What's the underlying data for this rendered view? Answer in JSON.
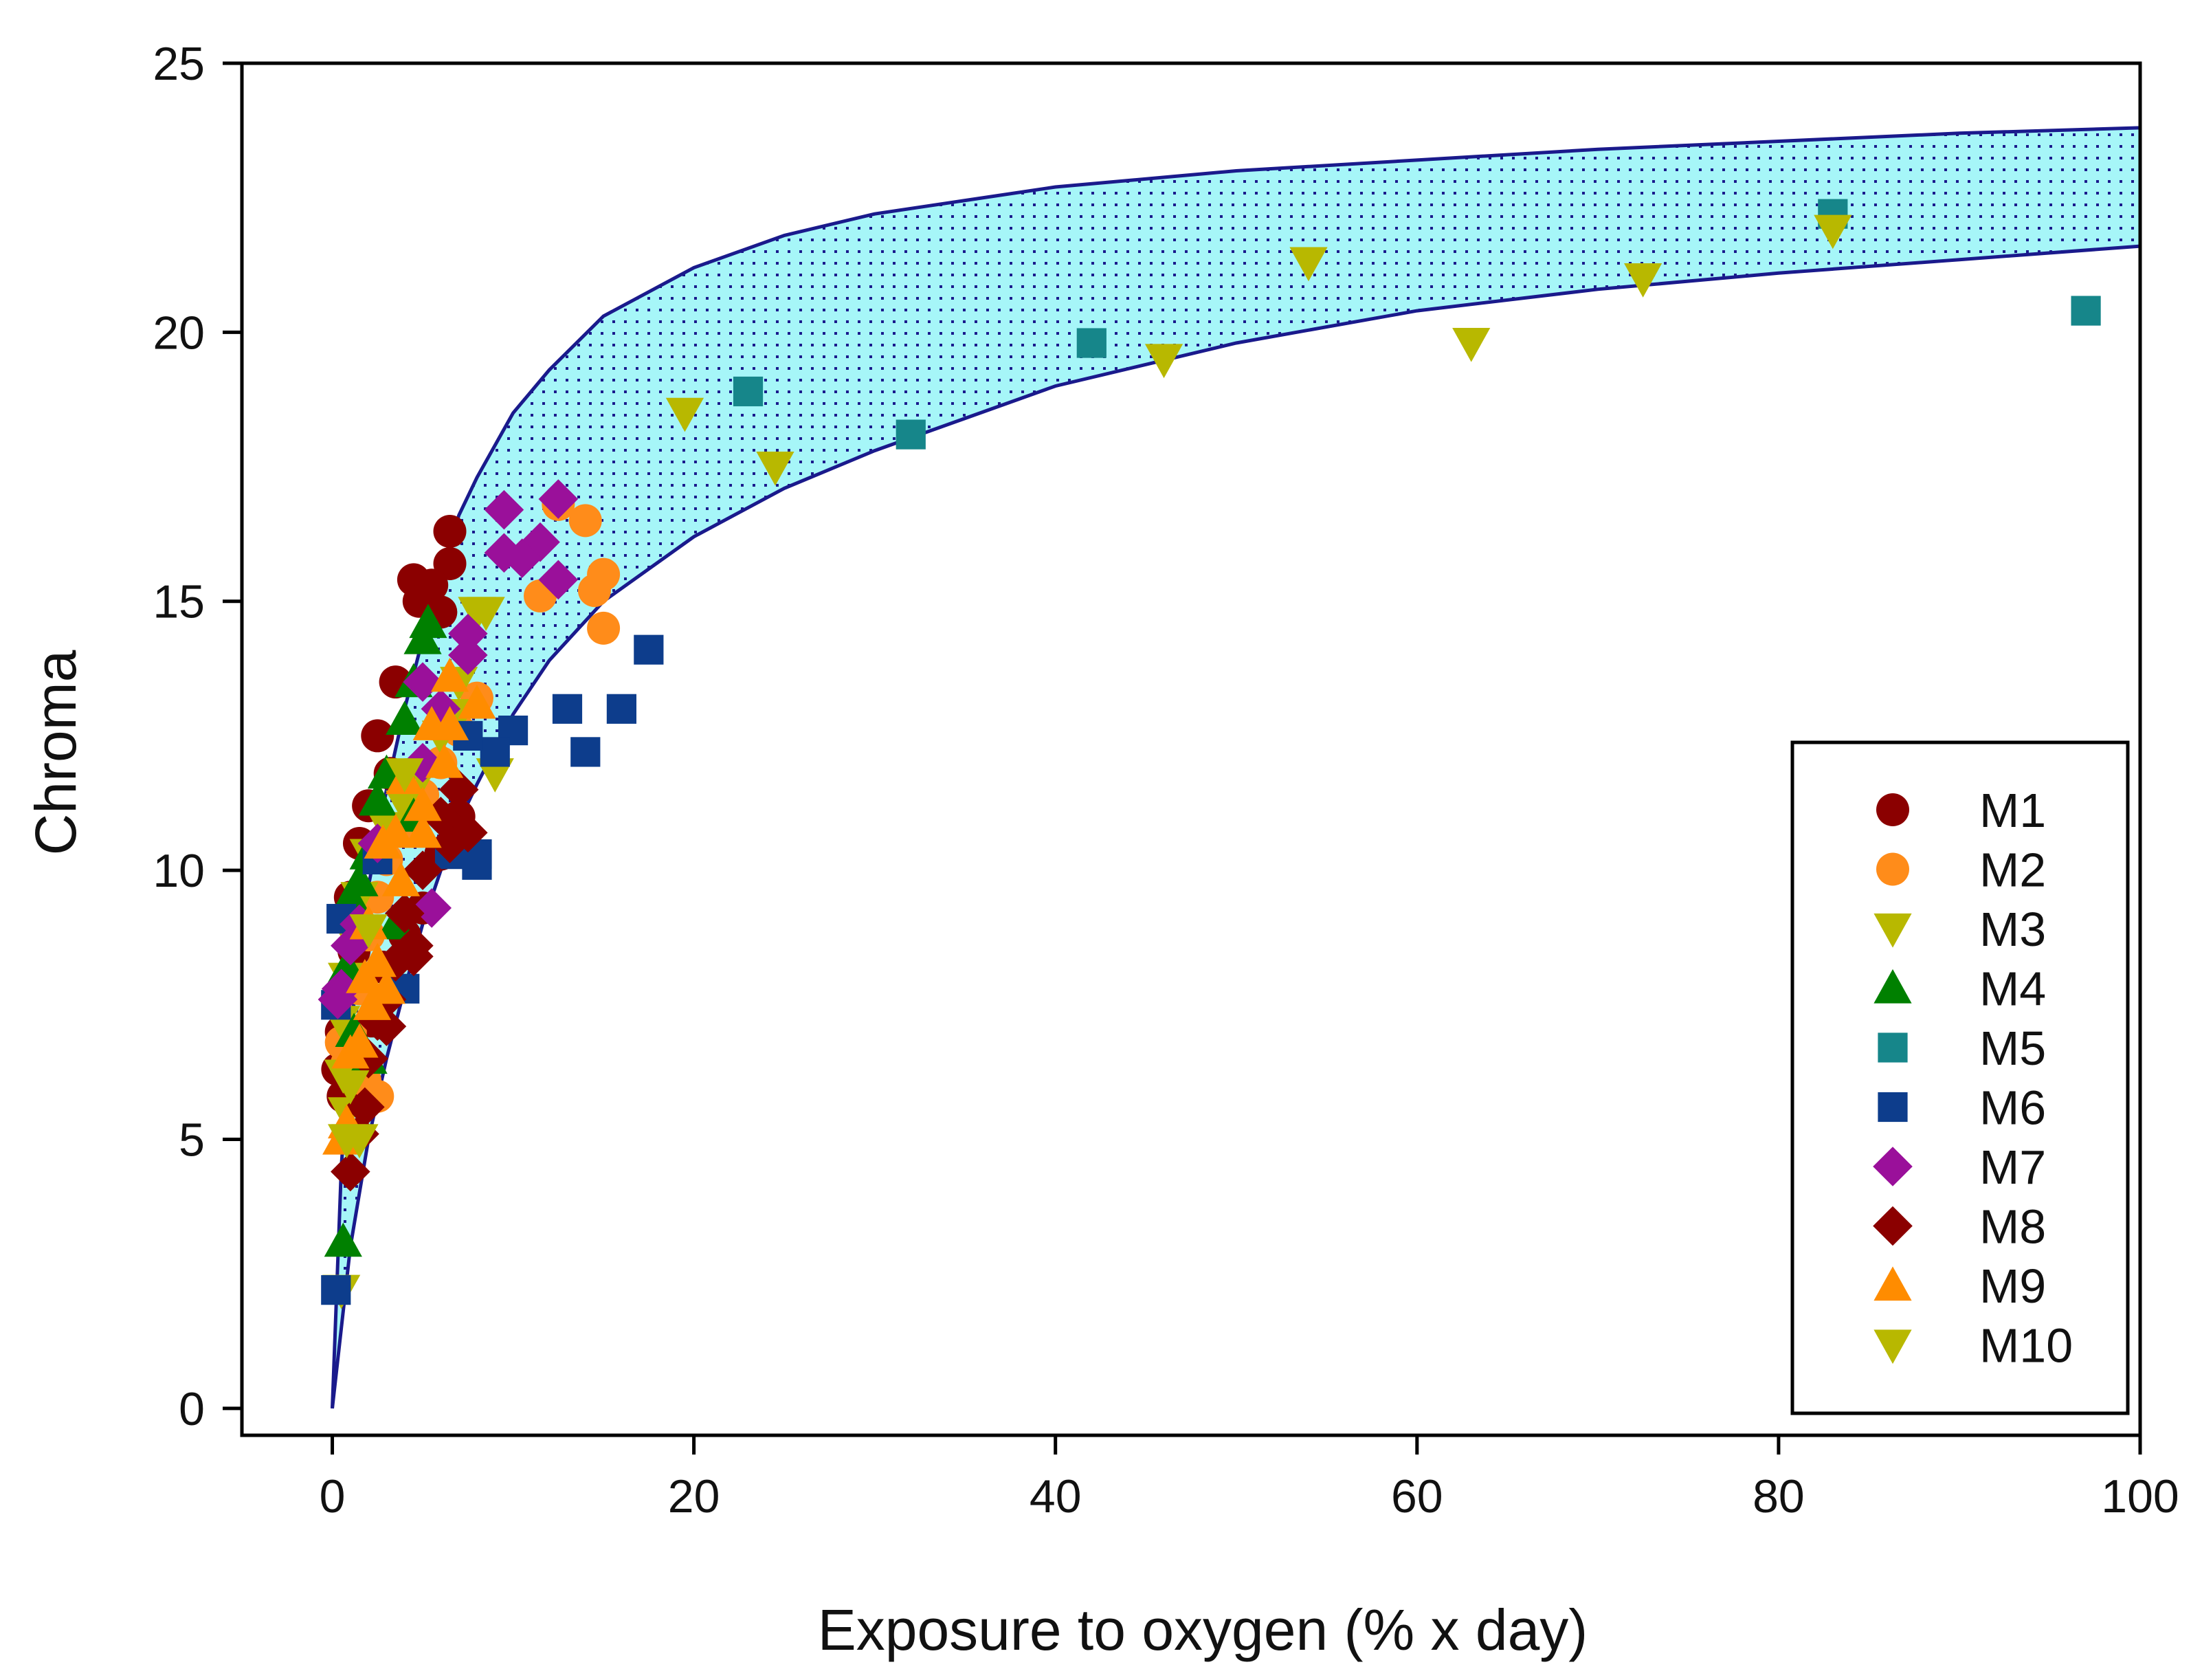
{
  "chart_data": {
    "type": "scatter",
    "title": "",
    "xlabel": "Exposure to oxygen (% x day)",
    "ylabel": "Chroma",
    "xlim": [
      -5,
      100
    ],
    "ylim": [
      -0.5,
      25
    ],
    "x_ticks": [
      "0",
      "20",
      "40",
      "60",
      "80",
      "100"
    ],
    "y_ticks": [
      "0",
      "5",
      "10",
      "15",
      "20",
      "25"
    ],
    "grid": false,
    "legend_position": "bottom-right",
    "band": {
      "fill": "#a6f6f8",
      "dot_color": "#1a1a8c",
      "edge_color": "#1a1a8c",
      "upper": [
        [
          0,
          0
        ],
        [
          0.5,
          4.5
        ],
        [
          1,
          7
        ],
        [
          2,
          9.7
        ],
        [
          3,
          11.5
        ],
        [
          4,
          13
        ],
        [
          5,
          14.3
        ],
        [
          6,
          15.5
        ],
        [
          7,
          16.6
        ],
        [
          8,
          17.3
        ],
        [
          10,
          18.5
        ],
        [
          12,
          19.3
        ],
        [
          15,
          20.3
        ],
        [
          20,
          21.2
        ],
        [
          25,
          21.8
        ],
        [
          30,
          22.2
        ],
        [
          40,
          22.7
        ],
        [
          50,
          23.0
        ],
        [
          60,
          23.2
        ],
        [
          70,
          23.4
        ],
        [
          80,
          23.55
        ],
        [
          90,
          23.7
        ],
        [
          100,
          23.8
        ]
      ],
      "lower": [
        [
          0,
          0
        ],
        [
          0.5,
          1.5
        ],
        [
          1,
          3
        ],
        [
          2,
          5
        ],
        [
          3,
          6.5
        ],
        [
          4,
          7.8
        ],
        [
          5,
          9
        ],
        [
          6,
          10
        ],
        [
          7,
          10.9
        ],
        [
          8,
          11.6
        ],
        [
          10,
          12.9
        ],
        [
          12,
          13.9
        ],
        [
          15,
          15
        ],
        [
          20,
          16.2
        ],
        [
          25,
          17.1
        ],
        [
          30,
          17.8
        ],
        [
          40,
          19.0
        ],
        [
          50,
          19.8
        ],
        [
          60,
          20.4
        ],
        [
          70,
          20.8
        ],
        [
          80,
          21.1
        ],
        [
          90,
          21.35
        ],
        [
          100,
          21.6
        ]
      ]
    },
    "series": [
      {
        "name": "M1",
        "marker": "circle",
        "color": "#8b0000",
        "points": [
          [
            6.5,
            16.3
          ],
          [
            6.5,
            15.7
          ],
          [
            4.5,
            15.4
          ],
          [
            5.5,
            15.3
          ],
          [
            4.8,
            15.0
          ],
          [
            6,
            14.8
          ],
          [
            3.5,
            13.5
          ],
          [
            2.5,
            12.5
          ],
          [
            3.2,
            11.8
          ],
          [
            2,
            11.2
          ],
          [
            1.5,
            10.5
          ],
          [
            1,
            9.5
          ],
          [
            1.2,
            8.5
          ],
          [
            0.8,
            7.8
          ],
          [
            0.5,
            7.0
          ],
          [
            0.3,
            6.3
          ],
          [
            0.6,
            5.8
          ],
          [
            1.5,
            6.5
          ],
          [
            2.2,
            7.2
          ],
          [
            2.8,
            8.2
          ],
          [
            4,
            8.8
          ],
          [
            5,
            9.3
          ],
          [
            6,
            10.3
          ],
          [
            7,
            11.0
          ]
        ]
      },
      {
        "name": "M2",
        "marker": "circle",
        "color": "#ff8c1a",
        "points": [
          [
            12.5,
            16.8
          ],
          [
            14,
            16.5
          ],
          [
            15,
            15.5
          ],
          [
            14.5,
            15.2
          ],
          [
            11.5,
            15.1
          ],
          [
            15,
            14.5
          ],
          [
            8,
            13.2
          ],
          [
            7,
            12.6
          ],
          [
            6,
            12.0
          ],
          [
            5,
            11.4
          ],
          [
            4,
            10.8
          ],
          [
            3,
            10.2
          ],
          [
            2.5,
            9.5
          ],
          [
            2,
            8.8
          ],
          [
            1.5,
            7.8
          ],
          [
            1,
            7.0
          ],
          [
            0.8,
            6.4
          ],
          [
            1.8,
            6.1
          ],
          [
            2.5,
            5.8
          ],
          [
            0.5,
            6.8
          ]
        ]
      },
      {
        "name": "M3",
        "marker": "triangle-down",
        "color": "#b8b800",
        "points": [
          [
            8,
            14.8
          ],
          [
            7,
            13.5
          ],
          [
            6,
            12.5
          ],
          [
            5,
            11.8
          ],
          [
            4,
            11.2
          ],
          [
            3,
            10.8
          ],
          [
            2,
            10.3
          ],
          [
            1.5,
            9.5
          ],
          [
            1,
            8.8
          ],
          [
            0.8,
            8.0
          ],
          [
            0.5,
            7.2
          ],
          [
            0.6,
            6.2
          ],
          [
            0.8,
            5.5
          ],
          [
            1,
            5.0
          ],
          [
            0.5,
            2.2
          ],
          [
            9,
            11.8
          ],
          [
            7,
            12.9
          ]
        ]
      },
      {
        "name": "M4",
        "marker": "triangle-up",
        "color": "#008000",
        "points": [
          [
            5.3,
            14.6
          ],
          [
            5,
            14.3
          ],
          [
            4.5,
            13.5
          ],
          [
            4,
            12.8
          ],
          [
            3,
            11.8
          ],
          [
            2.5,
            11.3
          ],
          [
            2,
            10.3
          ],
          [
            1.5,
            9.8
          ],
          [
            1,
            9.5
          ],
          [
            0.8,
            8.2
          ],
          [
            1.2,
            7.0
          ],
          [
            2,
            6.5
          ],
          [
            0.6,
            3.1
          ],
          [
            4.5,
            11.0
          ],
          [
            3.5,
            9.0
          ]
        ]
      },
      {
        "name": "M5",
        "marker": "square",
        "color": "#16868a",
        "points": [
          [
            23,
            18.9
          ],
          [
            32,
            18.1
          ],
          [
            42,
            19.8
          ],
          [
            83,
            22.2
          ],
          [
            97,
            20.4
          ]
        ]
      },
      {
        "name": "M6",
        "marker": "square",
        "color": "#0d3d8c",
        "points": [
          [
            17.5,
            14.1
          ],
          [
            16,
            13.0
          ],
          [
            13,
            13.0
          ],
          [
            14,
            12.2
          ],
          [
            10,
            12.6
          ],
          [
            9,
            12.2
          ],
          [
            7.5,
            12.5
          ],
          [
            8,
            10.3
          ],
          [
            8,
            10.1
          ],
          [
            6.5,
            10.3
          ],
          [
            4,
            7.8
          ],
          [
            2.5,
            10.2
          ],
          [
            0.5,
            9.1
          ],
          [
            0.2,
            7.5
          ],
          [
            0.2,
            2.2
          ]
        ]
      },
      {
        "name": "M7",
        "marker": "diamond",
        "color": "#9a109a",
        "points": [
          [
            12.5,
            16.9
          ],
          [
            9.5,
            16.7
          ],
          [
            11.5,
            16.1
          ],
          [
            10.5,
            15.8
          ],
          [
            9.5,
            15.9
          ],
          [
            12.5,
            15.4
          ],
          [
            7.5,
            14.4
          ],
          [
            7.5,
            14.0
          ],
          [
            5,
            13.5
          ],
          [
            6,
            13.0
          ],
          [
            5,
            12.0
          ],
          [
            5.5,
            9.3
          ],
          [
            2.5,
            10.5
          ],
          [
            1.5,
            9.0
          ],
          [
            1,
            8.6
          ],
          [
            0.5,
            7.8
          ],
          [
            0.3,
            7.6
          ]
        ]
      },
      {
        "name": "M8",
        "marker": "diamond",
        "color": "#8b0000",
        "points": [
          [
            7,
            11.5
          ],
          [
            7.5,
            10.7
          ],
          [
            6.5,
            10.5
          ],
          [
            6,
            11.0
          ],
          [
            5,
            10.0
          ],
          [
            4,
            9.2
          ],
          [
            4.5,
            8.6
          ],
          [
            3.5,
            8.3
          ],
          [
            3,
            7.6
          ],
          [
            2.5,
            7.2
          ],
          [
            2,
            6.5
          ],
          [
            1.8,
            5.6
          ],
          [
            1.5,
            5.1
          ],
          [
            1,
            4.4
          ],
          [
            3,
            7.1
          ],
          [
            4.5,
            8.4
          ]
        ]
      },
      {
        "name": "M9",
        "marker": "triangle-up",
        "color": "#ff8c00",
        "points": [
          [
            8,
            13.1
          ],
          [
            6.5,
            12.7
          ],
          [
            5.5,
            12.7
          ],
          [
            6.5,
            13.6
          ],
          [
            6.2,
            12.0
          ],
          [
            5,
            11.2
          ],
          [
            4,
            11.7
          ],
          [
            3.5,
            10.7
          ],
          [
            5,
            10.7
          ],
          [
            2.8,
            10.5
          ],
          [
            3.8,
            9.8
          ],
          [
            2,
            9.0
          ],
          [
            2.5,
            8.3
          ],
          [
            1.8,
            8.0
          ],
          [
            3,
            7.8
          ],
          [
            2.2,
            7.5
          ],
          [
            1.5,
            6.8
          ],
          [
            1,
            6.6
          ],
          [
            0.8,
            5.3
          ],
          [
            0.5,
            5.0
          ]
        ]
      },
      {
        "name": "M10",
        "marker": "triangle-down",
        "color": "#b8b800",
        "points": [
          [
            19.5,
            18.5
          ],
          [
            24.5,
            17.5
          ],
          [
            46,
            19.5
          ],
          [
            54,
            21.3
          ],
          [
            63,
            19.8
          ],
          [
            72.5,
            21.0
          ],
          [
            83,
            21.9
          ],
          [
            8.5,
            14.8
          ],
          [
            4,
            11.8
          ],
          [
            2,
            8.9
          ],
          [
            1,
            6.0
          ],
          [
            0.8,
            5.0
          ],
          [
            1.5,
            5.0
          ]
        ]
      }
    ]
  }
}
